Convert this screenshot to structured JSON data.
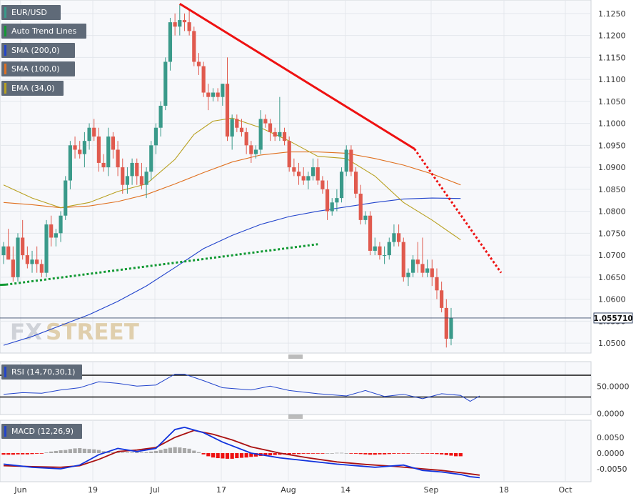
{
  "chart_data": [
    {
      "type": "candlestick",
      "symbol": "EUR/USD",
      "title": "EUR/USD",
      "x_ticks": [
        "Jun",
        "19",
        "Jul",
        "17",
        "Aug",
        "14",
        "Sep",
        "18",
        "Oct"
      ],
      "y_ticks": [
        "1.1250",
        "1.1200",
        "1.1150",
        "1.1100",
        "1.1050",
        "1.1000",
        "1.0950",
        "1.0900",
        "1.0850",
        "1.0800",
        "1.0750",
        "1.0700",
        "1.0650",
        "1.0600",
        "1.0550",
        "1.0500"
      ],
      "ylim": [
        1.0485,
        1.1275
      ],
      "last_price": "1.055710",
      "grid": true,
      "legend": [
        "EUR/USD",
        "Auto Trend Lines",
        "SMA (200,0)",
        "SMA (100,0)",
        "EMA (34,0)"
      ],
      "colors": {
        "up": "#3a9a8a",
        "down": "#e05a4e",
        "sma200": "#2244cc",
        "sma100": "#e07020",
        "ema34": "#b8a020",
        "downtrend": "#ee1111",
        "uptrend": "#119933"
      },
      "candles": [
        [
          1.07,
          1.073,
          1.068,
          1.072
        ],
        [
          1.072,
          1.076,
          1.069,
          1.069
        ],
        [
          1.069,
          1.072,
          1.064,
          1.065
        ],
        [
          1.065,
          1.075,
          1.064,
          1.074
        ],
        [
          1.074,
          1.078,
          1.069,
          1.07
        ],
        [
          1.07,
          1.072,
          1.067,
          1.068
        ],
        [
          1.068,
          1.071,
          1.066,
          1.069
        ],
        [
          1.069,
          1.072,
          1.066,
          1.068
        ],
        [
          1.068,
          1.069,
          1.065,
          1.066
        ],
        [
          1.066,
          1.078,
          1.065,
          1.077
        ],
        [
          1.077,
          1.079,
          1.072,
          1.074
        ],
        [
          1.074,
          1.076,
          1.072,
          1.075
        ],
        [
          1.075,
          1.08,
          1.073,
          1.079
        ],
        [
          1.079,
          1.088,
          1.078,
          1.087
        ],
        [
          1.087,
          1.096,
          1.085,
          1.095
        ],
        [
          1.095,
          1.097,
          1.092,
          1.094
        ],
        [
          1.094,
          1.096,
          1.092,
          1.093
        ],
        [
          1.093,
          1.098,
          1.09,
          1.096
        ],
        [
          1.096,
          1.1,
          1.094,
          1.099
        ],
        [
          1.099,
          1.101,
          1.096,
          1.097
        ],
        [
          1.097,
          1.099,
          1.089,
          1.091
        ],
        [
          1.091,
          1.093,
          1.089,
          1.09
        ],
        [
          1.09,
          1.099,
          1.088,
          1.097
        ],
        [
          1.097,
          1.098,
          1.092,
          1.094
        ],
        [
          1.094,
          1.096,
          1.088,
          1.09
        ],
        [
          1.09,
          1.092,
          1.084,
          1.086
        ],
        [
          1.086,
          1.09,
          1.084,
          1.088
        ],
        [
          1.088,
          1.092,
          1.086,
          1.091
        ],
        [
          1.091,
          1.092,
          1.086,
          1.088
        ],
        [
          1.088,
          1.091,
          1.085,
          1.086
        ],
        [
          1.086,
          1.09,
          1.083,
          1.089
        ],
        [
          1.089,
          1.096,
          1.087,
          1.095
        ],
        [
          1.095,
          1.1,
          1.093,
          1.099
        ],
        [
          1.099,
          1.105,
          1.097,
          1.104
        ],
        [
          1.104,
          1.115,
          1.103,
          1.114
        ],
        [
          1.114,
          1.124,
          1.112,
          1.123
        ],
        [
          1.123,
          1.125,
          1.12,
          1.122
        ],
        [
          1.122,
          1.127,
          1.12,
          1.1235
        ],
        [
          1.1235,
          1.125,
          1.121,
          1.123
        ],
        [
          1.123,
          1.126,
          1.12,
          1.121
        ],
        [
          1.121,
          1.122,
          1.113,
          1.114
        ],
        [
          1.114,
          1.116,
          1.111,
          1.113
        ],
        [
          1.113,
          1.114,
          1.106,
          1.107
        ],
        [
          1.107,
          1.109,
          1.103,
          1.106
        ],
        [
          1.106,
          1.108,
          1.105,
          1.107
        ],
        [
          1.107,
          1.108,
          1.105,
          1.106
        ],
        [
          1.106,
          1.109,
          1.104,
          1.109
        ],
        [
          1.109,
          1.115,
          1.096,
          1.097
        ],
        [
          1.097,
          1.102,
          1.094,
          1.101
        ],
        [
          1.101,
          1.102,
          1.098,
          1.099
        ],
        [
          1.099,
          1.101,
          1.097,
          1.098
        ],
        [
          1.098,
          1.099,
          1.093,
          1.095
        ],
        [
          1.095,
          1.096,
          1.091,
          1.093
        ],
        [
          1.093,
          1.095,
          1.092,
          1.094
        ],
        [
          1.094,
          1.103,
          1.093,
          1.101
        ],
        [
          1.101,
          1.102,
          1.099,
          1.1
        ],
        [
          1.1,
          1.101,
          1.096,
          1.098
        ],
        [
          1.098,
          1.099,
          1.096,
          1.097
        ],
        [
          1.097,
          1.106,
          1.096,
          1.098
        ],
        [
          1.098,
          1.099,
          1.095,
          1.096
        ],
        [
          1.096,
          1.097,
          1.089,
          1.09
        ],
        [
          1.09,
          1.092,
          1.088,
          1.089
        ],
        [
          1.089,
          1.091,
          1.086,
          1.088
        ],
        [
          1.088,
          1.09,
          1.086,
          1.087
        ],
        [
          1.087,
          1.089,
          1.085,
          1.088
        ],
        [
          1.088,
          1.092,
          1.087,
          1.09
        ],
        [
          1.09,
          1.092,
          1.086,
          1.087
        ],
        [
          1.087,
          1.088,
          1.084,
          1.085
        ],
        [
          1.085,
          1.087,
          1.078,
          1.08
        ],
        [
          1.08,
          1.083,
          1.079,
          1.082
        ],
        [
          1.082,
          1.085,
          1.08,
          1.083
        ],
        [
          1.083,
          1.09,
          1.082,
          1.089
        ],
        [
          1.089,
          1.095,
          1.088,
          1.094
        ],
        [
          1.094,
          1.095,
          1.088,
          1.089
        ],
        [
          1.089,
          1.09,
          1.083,
          1.084
        ],
        [
          1.084,
          1.086,
          1.077,
          1.078
        ],
        [
          1.078,
          1.08,
          1.077,
          1.079
        ],
        [
          1.079,
          1.08,
          1.07,
          1.071
        ],
        [
          1.071,
          1.074,
          1.07,
          1.072
        ],
        [
          1.072,
          1.073,
          1.069,
          1.07
        ],
        [
          1.07,
          1.072,
          1.068,
          1.07
        ],
        [
          1.07,
          1.074,
          1.069,
          1.073
        ],
        [
          1.073,
          1.077,
          1.072,
          1.075
        ],
        [
          1.075,
          1.077,
          1.072,
          1.073
        ],
        [
          1.073,
          1.074,
          1.064,
          1.065
        ],
        [
          1.065,
          1.067,
          1.063,
          1.066
        ],
        [
          1.066,
          1.07,
          1.065,
          1.069
        ],
        [
          1.069,
          1.073,
          1.066,
          1.068
        ],
        [
          1.068,
          1.074,
          1.065,
          1.066
        ],
        [
          1.066,
          1.069,
          1.065,
          1.067
        ],
        [
          1.067,
          1.069,
          1.063,
          1.065
        ],
        [
          1.065,
          1.067,
          1.06,
          1.062
        ],
        [
          1.062,
          1.064,
          1.057,
          1.058
        ],
        [
          1.058,
          1.06,
          1.049,
          1.051
        ],
        [
          1.051,
          1.058,
          1.0495,
          1.0557
        ]
      ],
      "sma200": [
        [
          0,
          1.0495
        ],
        [
          6,
          1.0515
        ],
        [
          12,
          1.054
        ],
        [
          18,
          1.0565
        ],
        [
          24,
          1.0595
        ],
        [
          30,
          1.063
        ],
        [
          36,
          1.0672
        ],
        [
          42,
          1.0715
        ],
        [
          48,
          1.0745
        ],
        [
          54,
          1.077
        ],
        [
          60,
          1.0788
        ],
        [
          66,
          1.08
        ],
        [
          72,
          1.081
        ],
        [
          78,
          1.082
        ],
        [
          84,
          1.0828
        ],
        [
          90,
          1.083
        ],
        [
          96,
          1.0829
        ]
      ],
      "sma100": [
        [
          0,
          1.082
        ],
        [
          6,
          1.0815
        ],
        [
          12,
          1.0808
        ],
        [
          18,
          1.0812
        ],
        [
          24,
          1.0822
        ],
        [
          30,
          1.0838
        ],
        [
          36,
          1.0862
        ],
        [
          42,
          1.0888
        ],
        [
          48,
          1.0912
        ],
        [
          54,
          1.0928
        ],
        [
          60,
          1.0935
        ],
        [
          66,
          1.0935
        ],
        [
          72,
          1.0932
        ],
        [
          78,
          1.092
        ],
        [
          84,
          1.0905
        ],
        [
          90,
          1.0885
        ],
        [
          96,
          1.086
        ]
      ],
      "ema34": [
        [
          0,
          1.086
        ],
        [
          6,
          1.083
        ],
        [
          12,
          1.0808
        ],
        [
          18,
          1.082
        ],
        [
          24,
          1.0845
        ],
        [
          30,
          1.0862
        ],
        [
          36,
          1.0918
        ],
        [
          40,
          1.0975
        ],
        [
          44,
          1.1005
        ],
        [
          48,
          1.1012
        ],
        [
          54,
          1.099
        ],
        [
          60,
          1.096
        ],
        [
          66,
          1.0925
        ],
        [
          72,
          1.092
        ],
        [
          78,
          1.088
        ],
        [
          84,
          1.082
        ],
        [
          90,
          1.078
        ],
        [
          96,
          1.0735
        ]
      ],
      "downtrend_solid": [
        [
          37,
          1.1272
        ],
        [
          86.3,
          1.0942
        ]
      ],
      "downtrend_dotted": [
        [
          86.3,
          1.0942
        ],
        [
          104.5,
          1.066
        ]
      ],
      "uptrend_solid": [
        [
          -2,
          1.0632
        ],
        [
          0.5,
          1.0633
        ]
      ],
      "uptrend_dotted": [
        [
          0.5,
          1.0633
        ],
        [
          66,
          1.0725
        ]
      ]
    },
    {
      "type": "line",
      "title": "RSI (14,70,30,1)",
      "y_ticks": [
        "50.0000",
        "0.0000"
      ],
      "ylim": [
        -5,
        85
      ],
      "levels": [
        70,
        30
      ],
      "values": [
        [
          0,
          35
        ],
        [
          4,
          38
        ],
        [
          8,
          37
        ],
        [
          12,
          43
        ],
        [
          16,
          47
        ],
        [
          20,
          58
        ],
        [
          24,
          55
        ],
        [
          28,
          50
        ],
        [
          32,
          52
        ],
        [
          36,
          72
        ],
        [
          38,
          72
        ],
        [
          42,
          60
        ],
        [
          46,
          47
        ],
        [
          52,
          43
        ],
        [
          56,
          50
        ],
        [
          60,
          42
        ],
        [
          66,
          36
        ],
        [
          72,
          32
        ],
        [
          76,
          42
        ],
        [
          80,
          31
        ],
        [
          84,
          35
        ],
        [
          88,
          27
        ],
        [
          92,
          36
        ],
        [
          96,
          33
        ],
        [
          98,
          22
        ],
        [
          100,
          32
        ]
      ]
    },
    {
      "type": "bar+line",
      "title": "MACD (12,26,9)",
      "y_ticks": [
        "0.0050",
        "0.0000",
        "-0.0050"
      ],
      "ylim": [
        -0.0078,
        0.0092
      ],
      "histogram": [
        -0.0005,
        -0.0005,
        -0.0005,
        -0.0004,
        -0.0004,
        -0.0004,
        -0.0003,
        -0.0002,
        -0.0001,
        0.0002,
        0.0005,
        0.0007,
        0.0009,
        0.001,
        0.0013,
        0.0015,
        0.0016,
        0.0014,
        0.0013,
        0.0012,
        0.001,
        0.0006,
        0.0004,
        0.0003,
        0.0003,
        0.0002,
        0.0002,
        0.0002,
        0.0003,
        0.0002,
        0.0003,
        0.0005,
        0.0007,
        0.001,
        0.0014,
        0.0017,
        0.0019,
        0.0018,
        0.0016,
        0.0014,
        0.0008,
        0.0003,
        -0.0004,
        -0.001,
        -0.0014,
        -0.0016,
        -0.0017,
        -0.0018,
        -0.0018,
        -0.0016,
        -0.0015,
        -0.0014,
        -0.0012,
        -0.0011,
        -0.0009,
        -0.0008,
        -0.0007,
        -0.0006,
        -0.0005,
        -0.0004,
        -0.0004,
        -0.0003,
        -0.0003,
        -0.0002,
        -0.0002,
        -0.0001,
        -0.0001,
        -0.0001,
        0.0,
        0.0,
        0.0001,
        0.0001,
        0.0,
        -0.0001,
        -0.0002,
        -0.0003,
        -0.0004,
        -0.0005,
        -0.0005,
        -0.0004,
        -0.0004,
        -0.0003,
        -0.0002,
        -0.0001,
        -0.0001,
        -0.0001,
        0.0,
        0.0,
        -0.0001,
        -0.0001,
        -0.0002,
        -0.0003,
        -0.0004,
        -0.0006,
        -0.0008,
        -0.001,
        -0.001
      ],
      "macd": [
        [
          0,
          -0.0035
        ],
        [
          6,
          -0.0045
        ],
        [
          12,
          -0.005
        ],
        [
          16,
          -0.0038
        ],
        [
          20,
          -0.0005
        ],
        [
          24,
          0.0015
        ],
        [
          28,
          0.0005
        ],
        [
          32,
          0.0015
        ],
        [
          36,
          0.0075
        ],
        [
          38,
          0.0082
        ],
        [
          42,
          0.0065
        ],
        [
          46,
          0.0035
        ],
        [
          52,
          0.0
        ],
        [
          58,
          -0.0015
        ],
        [
          64,
          -0.0025
        ],
        [
          70,
          -0.0035
        ],
        [
          74,
          -0.004
        ],
        [
          78,
          -0.0045
        ],
        [
          84,
          -0.0038
        ],
        [
          88,
          -0.0055
        ],
        [
          92,
          -0.006
        ],
        [
          96,
          -0.0068
        ],
        [
          98,
          -0.0075
        ],
        [
          100,
          -0.0078
        ]
      ],
      "signal": [
        [
          0,
          -0.004
        ],
        [
          6,
          -0.0043
        ],
        [
          12,
          -0.0045
        ],
        [
          16,
          -0.004
        ],
        [
          20,
          -0.002
        ],
        [
          24,
          0.0005
        ],
        [
          28,
          0.001
        ],
        [
          32,
          0.0018
        ],
        [
          36,
          0.005
        ],
        [
          40,
          0.0072
        ],
        [
          44,
          0.006
        ],
        [
          48,
          0.0042
        ],
        [
          52,
          0.002
        ],
        [
          58,
          0.0
        ],
        [
          64,
          -0.0015
        ],
        [
          70,
          -0.0028
        ],
        [
          76,
          -0.0036
        ],
        [
          82,
          -0.0042
        ],
        [
          88,
          -0.005
        ],
        [
          92,
          -0.0055
        ],
        [
          96,
          -0.0062
        ],
        [
          100,
          -0.007
        ]
      ]
    }
  ]
}
